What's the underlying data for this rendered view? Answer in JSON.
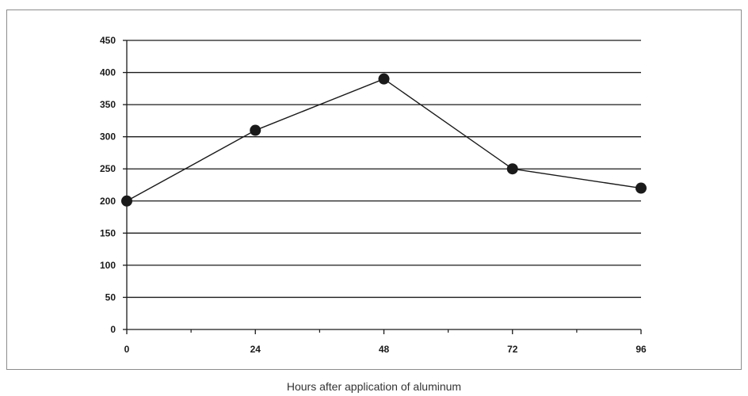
{
  "chart_data": {
    "type": "line",
    "title": "",
    "xlabel": "Hours after application of aluminum",
    "ylabel": "",
    "x": [
      0,
      24,
      48,
      72,
      96
    ],
    "xticks": [
      0,
      24,
      48,
      72,
      96
    ],
    "xlim": [
      0,
      96
    ],
    "ylim": [
      0,
      450
    ],
    "yticks": [
      0,
      50,
      100,
      150,
      200,
      250,
      300,
      350,
      400,
      450
    ],
    "grid": true,
    "legend": "none",
    "series": [
      {
        "values": [
          200,
          310,
          390,
          250,
          220
        ]
      }
    ],
    "colors": {
      "line": "#1a1a1a",
      "marker": "#1a1a1a",
      "grid": "#1a1a1a",
      "frame": "#8c8c8c"
    }
  }
}
